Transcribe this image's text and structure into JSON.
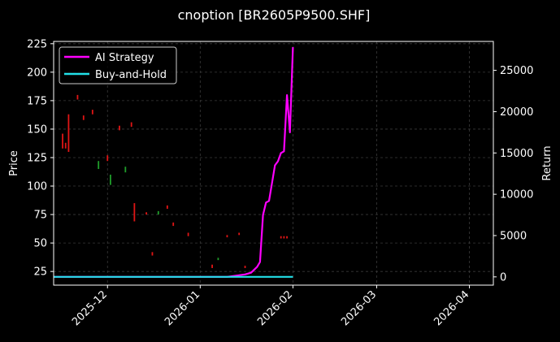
{
  "chart_data": {
    "type": "line",
    "title": "cnoption [BR2605P9500.SHF]",
    "ylabel": "Price",
    "y2label": "Return",
    "xlim": [
      "2025-11-13",
      "2026-04-09"
    ],
    "ylim": [
      13,
      227
    ],
    "y2lim": [
      -1000,
      28500
    ],
    "x_ticks": [
      "2025-12",
      "2026-01",
      "2026-02",
      "2026-03",
      "2026-04"
    ],
    "y_ticks": [
      25,
      50,
      75,
      100,
      125,
      150,
      175,
      200,
      225
    ],
    "y2_ticks": [
      0,
      5000,
      10000,
      15000,
      20000,
      25000
    ],
    "grid": true,
    "legend_position": "top-left",
    "colors": {
      "background": "#000000",
      "ai_strategy": "#ff00ff",
      "buy_and_hold": "#22e0e8",
      "candle_up": "#1f9e2a",
      "candle_down": "#e01515",
      "grid": "#3a3a3a"
    },
    "series": [
      {
        "name": "AI Strategy",
        "axis": "right",
        "points": [
          [
            "2025-11-13",
            0
          ],
          [
            "2026-01-10",
            0
          ],
          [
            "2026-01-13",
            150
          ],
          [
            "2026-01-16",
            300
          ],
          [
            "2026-01-18",
            500
          ],
          [
            "2026-01-20",
            1200
          ],
          [
            "2026-01-21",
            1800
          ],
          [
            "2026-01-22",
            7500
          ],
          [
            "2026-01-23",
            9000
          ],
          [
            "2026-01-24",
            9200
          ],
          [
            "2026-01-26",
            13500
          ],
          [
            "2026-01-27",
            14000
          ],
          [
            "2026-01-28",
            15000
          ],
          [
            "2026-01-29",
            15200
          ],
          [
            "2026-01-30",
            22000
          ],
          [
            "2026-01-31",
            17500
          ],
          [
            "2026-02-01",
            27800
          ]
        ]
      },
      {
        "name": "Buy-and-Hold",
        "axis": "right",
        "points": [
          [
            "2025-11-13",
            0
          ],
          [
            "2026-02-01",
            0
          ]
        ]
      }
    ],
    "candles": [
      {
        "date": "2025-11-16",
        "high": 146,
        "low": 133,
        "dir": "down"
      },
      {
        "date": "2025-11-17",
        "high": 138,
        "low": 133,
        "dir": "down"
      },
      {
        "date": "2025-11-18",
        "high": 163,
        "low": 130,
        "dir": "down"
      },
      {
        "date": "2025-11-21",
        "high": 180,
        "low": 176,
        "dir": "down"
      },
      {
        "date": "2025-11-23",
        "high": 162,
        "low": 158,
        "dir": "down"
      },
      {
        "date": "2025-11-26",
        "high": 167,
        "low": 163,
        "dir": "down"
      },
      {
        "date": "2025-11-28",
        "high": 122,
        "low": 115,
        "dir": "up"
      },
      {
        "date": "2025-12-01",
        "high": 127,
        "low": 122,
        "dir": "down"
      },
      {
        "date": "2025-12-02",
        "high": 110,
        "low": 101,
        "dir": "up"
      },
      {
        "date": "2025-12-05",
        "high": 153,
        "low": 149,
        "dir": "down"
      },
      {
        "date": "2025-12-07",
        "high": 117,
        "low": 112,
        "dir": "up"
      },
      {
        "date": "2025-12-09",
        "high": 156,
        "low": 152,
        "dir": "down"
      },
      {
        "date": "2025-12-10",
        "high": 85,
        "low": 69,
        "dir": "down"
      },
      {
        "date": "2025-12-14",
        "high": 77,
        "low": 75,
        "dir": "down"
      },
      {
        "date": "2025-12-16",
        "high": 42,
        "low": 39,
        "dir": "down"
      },
      {
        "date": "2025-12-18",
        "high": 78,
        "low": 75,
        "dir": "up"
      },
      {
        "date": "2025-12-21",
        "high": 83,
        "low": 80,
        "dir": "down"
      },
      {
        "date": "2025-12-23",
        "high": 68,
        "low": 65,
        "dir": "down"
      },
      {
        "date": "2025-12-28",
        "high": 59,
        "low": 56,
        "dir": "down"
      },
      {
        "date": "2026-01-05",
        "high": 31,
        "low": 28,
        "dir": "down"
      },
      {
        "date": "2026-01-07",
        "high": 37,
        "low": 35,
        "dir": "up"
      },
      {
        "date": "2026-01-10",
        "high": 57,
        "low": 55,
        "dir": "down"
      },
      {
        "date": "2026-01-14",
        "high": 59,
        "low": 57,
        "dir": "down"
      },
      {
        "date": "2026-01-16",
        "high": 30,
        "low": 28,
        "dir": "down"
      },
      {
        "date": "2026-01-28",
        "high": 56,
        "low": 54,
        "dir": "down"
      },
      {
        "date": "2026-01-29",
        "high": 56,
        "low": 54,
        "dir": "down"
      },
      {
        "date": "2026-01-30",
        "high": 56,
        "low": 54,
        "dir": "down"
      }
    ]
  }
}
